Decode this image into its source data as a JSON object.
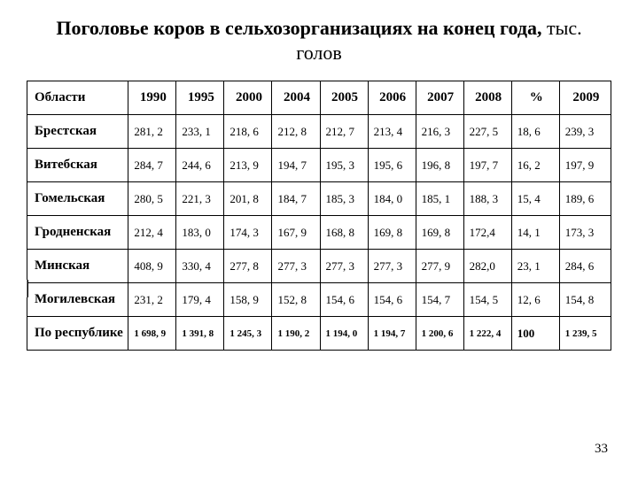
{
  "title_bold": "Поголовье коров в сельхозорганизациях на конец года,",
  "title_tail": " тыс. голов",
  "columns": [
    "Области",
    "1990",
    "1995",
    "2000",
    "2004",
    "2005",
    "2006",
    "2007",
    "2008",
    "%",
    "2009"
  ],
  "rows": [
    {
      "label": "Брестская",
      "cells": [
        "281, 2",
        "233, 1",
        "218, 6",
        "212, 8",
        "212, 7",
        "213, 4",
        "216, 3",
        "227, 5",
        "18, 6",
        "239, 3"
      ]
    },
    {
      "label": "Витебская",
      "cells": [
        "284, 7",
        "244, 6",
        "213, 9",
        "194, 7",
        "195, 3",
        "195, 6",
        "196, 8",
        "197, 7",
        "16, 2",
        "197, 9"
      ]
    },
    {
      "label": "Гомельская",
      "cells": [
        "280, 5",
        "221, 3",
        "201, 8",
        "184, 7",
        "185, 3",
        "184, 0",
        "185, 1",
        "188, 3",
        "15, 4",
        "189, 6"
      ]
    },
    {
      "label": "Гродненская",
      "cells": [
        "212, 4",
        "183, 0",
        "174, 3",
        "167, 9",
        "168, 8",
        "169, 8",
        "169, 8",
        "172,4",
        "14, 1",
        "173, 3"
      ]
    },
    {
      "label": "Минская",
      "cells": [
        "408, 9",
        "330, 4",
        "277, 8",
        "277, 3",
        "277, 3",
        "277, 3",
        "277, 9",
        "282,0",
        "23, 1",
        "284, 6"
      ]
    },
    {
      "label": "Могилевская",
      "cells": [
        "231, 2",
        "179, 4",
        "158, 9",
        "152, 8",
        "154, 6",
        "154, 6",
        "154, 7",
        "154, 5",
        "12, 6",
        "154, 8"
      ]
    }
  ],
  "total": {
    "label": "По республике",
    "cells": [
      "1 698, 9",
      "1 391, 8",
      "1 245, 3",
      "1 190, 2",
      "1 194, 0",
      "1 194, 7",
      "1 200, 6",
      "1 222, 4",
      "100",
      "1 239, 5"
    ]
  },
  "page_number": "33"
}
